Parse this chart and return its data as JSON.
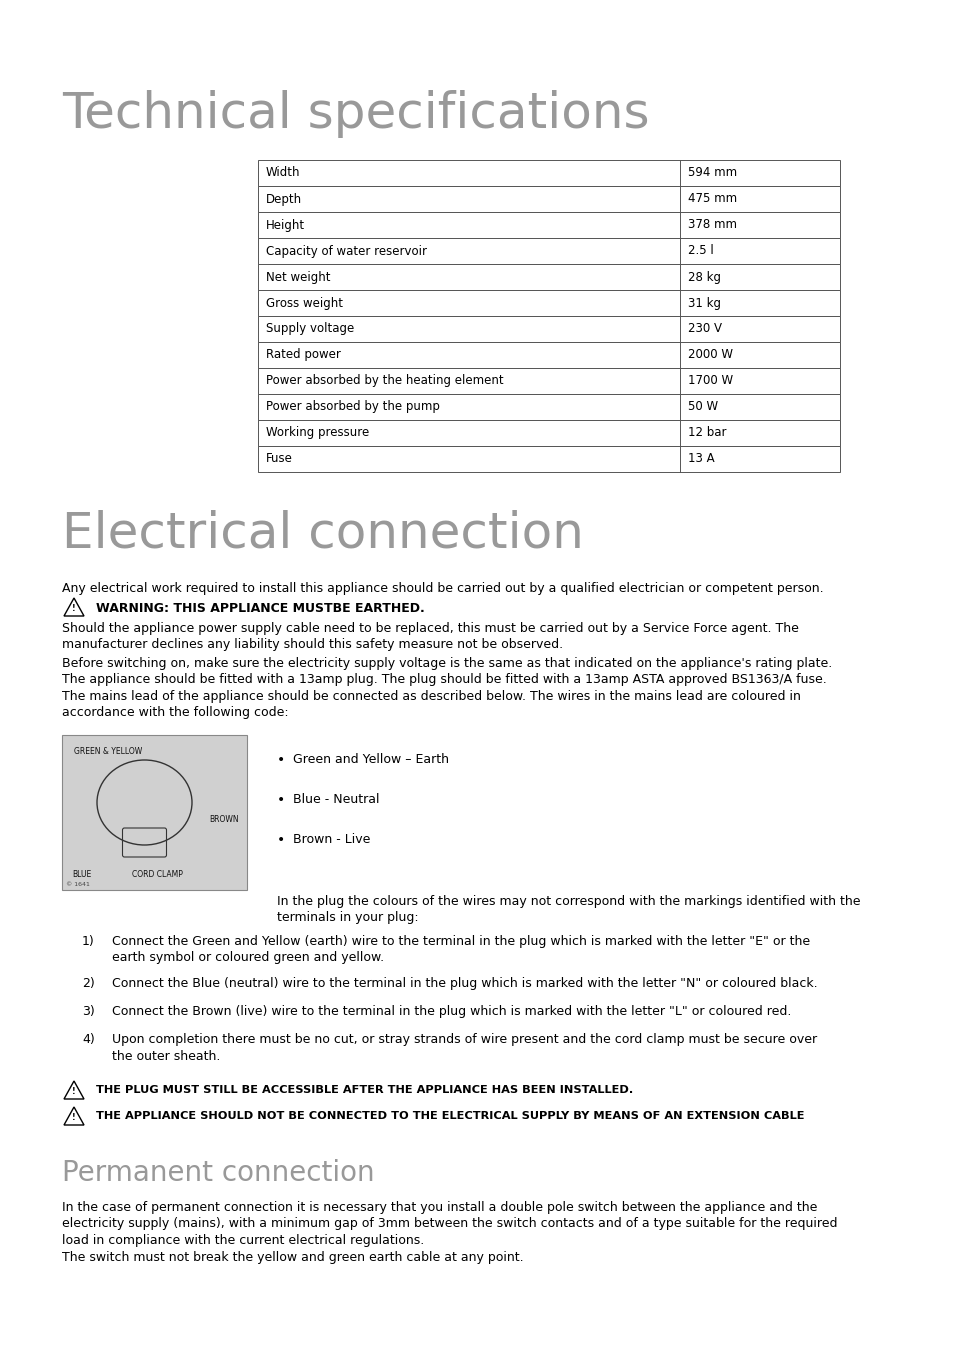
{
  "bg_color": "#ffffff",
  "title1": "Technical specifications",
  "title1_color": "#999999",
  "title1_fontsize": 36,
  "table_data": [
    [
      "Width",
      "594 mm"
    ],
    [
      "Depth",
      "475 mm"
    ],
    [
      "Height",
      "378 mm"
    ],
    [
      "Capacity of water reservoir",
      "2.5 l"
    ],
    [
      "Net weight",
      "28 kg"
    ],
    [
      "Gross weight",
      "31 kg"
    ],
    [
      "Supply voltage",
      "230 V"
    ],
    [
      "Rated power",
      "2000 W"
    ],
    [
      "Power absorbed by the heating element",
      "1700 W"
    ],
    [
      "Power absorbed by the pump",
      "50 W"
    ],
    [
      "Working pressure",
      "12 bar"
    ],
    [
      "Fuse",
      "13 A"
    ]
  ],
  "title2": "Electrical connection",
  "title2_color": "#999999",
  "title2_fontsize": 36,
  "section_title3": "Permanent connection",
  "section_title3_color": "#999999",
  "section_title3_fontsize": 20,
  "body_fontsize": 9.0,
  "small_fontsize": 7.5,
  "intro_text": "Any electrical work required to install this appliance should be carried out by a qualified electrician or competent person.",
  "warning1_text": "WARNING: THIS APPLIANCE MUSTBE EARTHED.",
  "para1_text": "Should the appliance power supply cable need to be replaced, this must be carried out by a Service Force agent. The\nmanufacturer declines any liability should this safety measure not be observed.",
  "para2_text": "Before switching on, make sure the electricity supply voltage is the same as that indicated on the appliance's rating plate.\nThe appliance should be fitted with a 13amp plug. The plug should be fitted with a 13amp ASTA approved BS1363/A fuse.\nThe mains lead of the appliance should be connected as described below. The wires in the mains lead are coloured in\naccordance with the following code:",
  "bullets": [
    "Green and Yellow – Earth",
    "Blue - Neutral",
    "Brown - Live"
  ],
  "plug_caption": "In the plug the colours of the wires may not correspond with the markings identified with the\nterminals in your plug:",
  "num_items": [
    "Connect the Green and Yellow (earth) wire to the terminal in the plug which is marked with the letter \"E\" or the\nearth symbol or coloured green and yellow.",
    "Connect the Blue (neutral) wire to the terminal in the plug which is marked with the letter \"N\" or coloured black.",
    "Connect the Brown (live) wire to the terminal in the plug which is marked with the letter \"L\" or coloured red.",
    "Upon completion there must be no cut, or stray strands of wire present and the cord clamp must be secure over\nthe outer sheath."
  ],
  "warn2_text": "THE PLUG MUST STILL BE ACCESSIBLE AFTER THE APPLIANCE HAS BEEN INSTALLED.",
  "warn3_text": "THE APPLIANCE SHOULD NOT BE CONNECTED TO THE ELECTRICAL SUPPLY BY MEANS OF AN EXTENSION CABLE",
  "perm_text": "In the case of permanent connection it is necessary that you install a double pole switch between the appliance and the\nelectricity supply (mains), with a minimum gap of 3mm between the switch contacts and of a type suitable for the required\nload in compliance with the current electrical regulations.\nThe switch must not break the yellow and green earth cable at any point.",
  "img_labels": [
    "GREEN & YELLOW",
    "BLUE",
    "CORD CLAMP",
    "BROWN",
    "© 1641"
  ],
  "table_border_color": "#555555",
  "text_color": "#000000"
}
